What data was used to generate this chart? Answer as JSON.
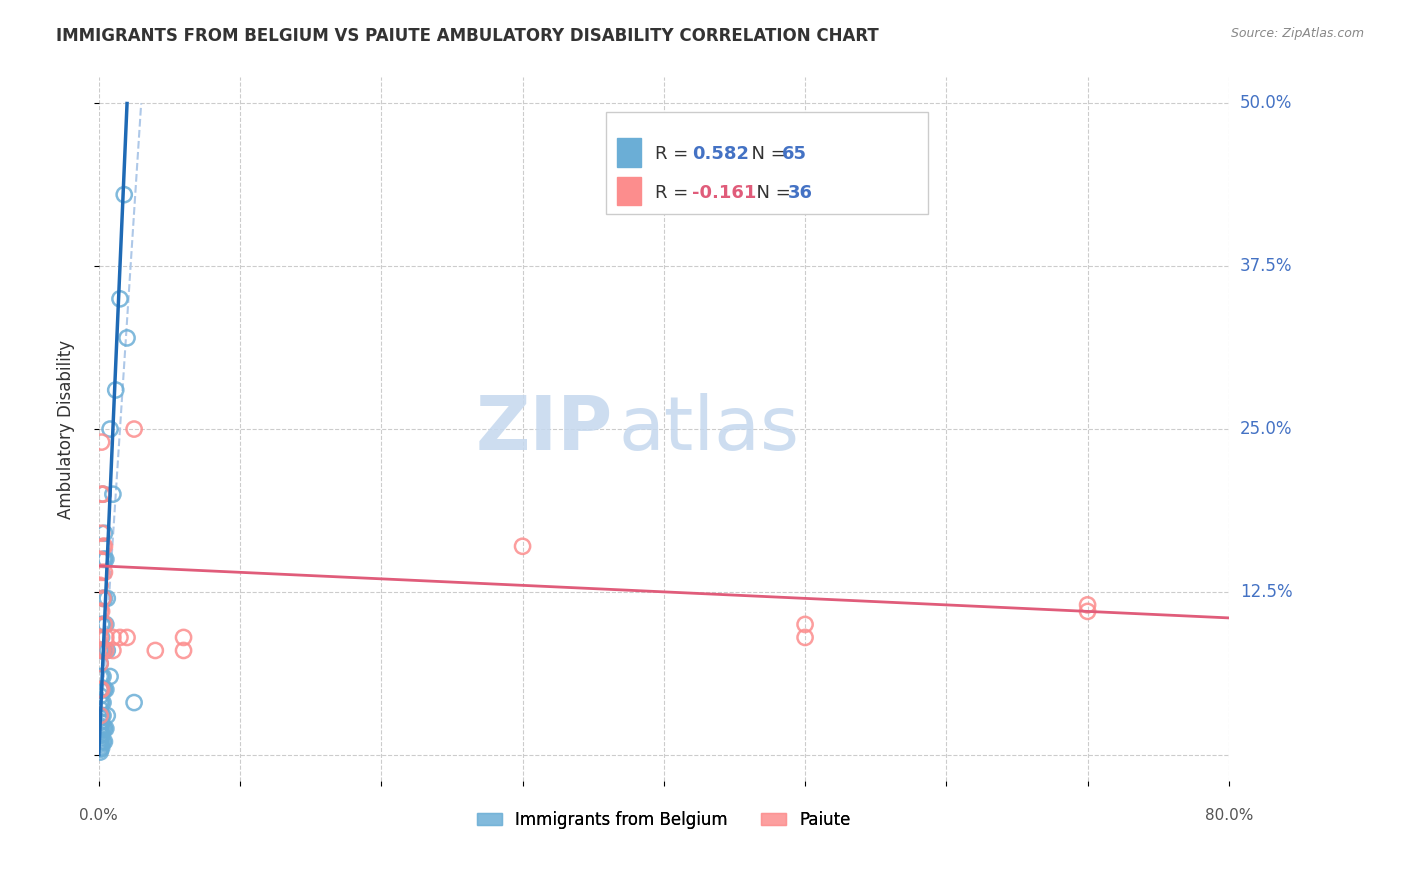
{
  "title": "IMMIGRANTS FROM BELGIUM VS PAIUTE AMBULATORY DISABILITY CORRELATION CHART",
  "source": "Source: ZipAtlas.com",
  "ylabel": "Ambulatory Disability",
  "xlim": [
    0.0,
    0.8
  ],
  "ylim": [
    -0.02,
    0.52
  ],
  "yticks": [
    0.0,
    0.125,
    0.25,
    0.375,
    0.5
  ],
  "ytick_labels": [
    "",
    "12.5%",
    "25.0%",
    "37.5%",
    "50.0%"
  ],
  "xticks": [
    0.0,
    0.1,
    0.2,
    0.3,
    0.4,
    0.5,
    0.6,
    0.7,
    0.8
  ],
  "blue_color": "#6baed6",
  "pink_color": "#fc8d8d",
  "trendline_blue": "#1f6ab5",
  "trendline_pink": "#e05c7a",
  "trendline_dashed_color": "#aec8e8",
  "watermark_zip": "ZIP",
  "watermark_atlas": "atlas",
  "blue_scatter": [
    [
      0.001,
      0.002
    ],
    [
      0.001,
      0.004
    ],
    [
      0.001,
      0.006
    ],
    [
      0.001,
      0.008
    ],
    [
      0.001,
      0.01
    ],
    [
      0.001,
      0.012
    ],
    [
      0.001,
      0.015
    ],
    [
      0.001,
      0.018
    ],
    [
      0.001,
      0.02
    ],
    [
      0.001,
      0.022
    ],
    [
      0.001,
      0.025
    ],
    [
      0.001,
      0.028
    ],
    [
      0.001,
      0.03
    ],
    [
      0.001,
      0.035
    ],
    [
      0.001,
      0.04
    ],
    [
      0.001,
      0.045
    ],
    [
      0.001,
      0.05
    ],
    [
      0.001,
      0.06
    ],
    [
      0.001,
      0.07
    ],
    [
      0.001,
      0.08
    ],
    [
      0.002,
      0.005
    ],
    [
      0.002,
      0.01
    ],
    [
      0.002,
      0.015
    ],
    [
      0.002,
      0.02
    ],
    [
      0.002,
      0.025
    ],
    [
      0.002,
      0.03
    ],
    [
      0.002,
      0.04
    ],
    [
      0.002,
      0.05
    ],
    [
      0.002,
      0.06
    ],
    [
      0.002,
      0.08
    ],
    [
      0.002,
      0.09
    ],
    [
      0.002,
      0.1
    ],
    [
      0.003,
      0.01
    ],
    [
      0.003,
      0.02
    ],
    [
      0.003,
      0.03
    ],
    [
      0.003,
      0.04
    ],
    [
      0.003,
      0.05
    ],
    [
      0.003,
      0.06
    ],
    [
      0.003,
      0.08
    ],
    [
      0.003,
      0.1
    ],
    [
      0.003,
      0.12
    ],
    [
      0.003,
      0.15
    ],
    [
      0.003,
      0.2
    ],
    [
      0.004,
      0.01
    ],
    [
      0.004,
      0.02
    ],
    [
      0.004,
      0.05
    ],
    [
      0.004,
      0.08
    ],
    [
      0.004,
      0.12
    ],
    [
      0.004,
      0.15
    ],
    [
      0.004,
      0.17
    ],
    [
      0.005,
      0.02
    ],
    [
      0.005,
      0.05
    ],
    [
      0.005,
      0.1
    ],
    [
      0.005,
      0.15
    ],
    [
      0.006,
      0.03
    ],
    [
      0.006,
      0.08
    ],
    [
      0.006,
      0.12
    ],
    [
      0.008,
      0.06
    ],
    [
      0.008,
      0.25
    ],
    [
      0.01,
      0.2
    ],
    [
      0.012,
      0.28
    ],
    [
      0.015,
      0.35
    ],
    [
      0.018,
      0.43
    ],
    [
      0.02,
      0.32
    ],
    [
      0.025,
      0.04
    ]
  ],
  "pink_scatter": [
    [
      0.001,
      0.03
    ],
    [
      0.001,
      0.05
    ],
    [
      0.001,
      0.07
    ],
    [
      0.001,
      0.09
    ],
    [
      0.001,
      0.11
    ],
    [
      0.001,
      0.13
    ],
    [
      0.001,
      0.15
    ],
    [
      0.002,
      0.05
    ],
    [
      0.002,
      0.08
    ],
    [
      0.002,
      0.11
    ],
    [
      0.002,
      0.14
    ],
    [
      0.002,
      0.17
    ],
    [
      0.002,
      0.2
    ],
    [
      0.002,
      0.24
    ],
    [
      0.003,
      0.08
    ],
    [
      0.003,
      0.12
    ],
    [
      0.003,
      0.16
    ],
    [
      0.003,
      0.2
    ],
    [
      0.004,
      0.1
    ],
    [
      0.004,
      0.14
    ],
    [
      0.004,
      0.16
    ],
    [
      0.005,
      0.09
    ],
    [
      0.005,
      0.08
    ],
    [
      0.01,
      0.09
    ],
    [
      0.01,
      0.08
    ],
    [
      0.015,
      0.09
    ],
    [
      0.02,
      0.09
    ],
    [
      0.025,
      0.25
    ],
    [
      0.04,
      0.08
    ],
    [
      0.06,
      0.09
    ],
    [
      0.06,
      0.08
    ],
    [
      0.3,
      0.16
    ],
    [
      0.5,
      0.1
    ],
    [
      0.5,
      0.09
    ],
    [
      0.7,
      0.115
    ],
    [
      0.7,
      0.11
    ]
  ],
  "blue_trendline": [
    [
      0.0,
      0.0
    ],
    [
      0.02,
      0.5
    ]
  ],
  "pink_trendline": [
    [
      0.0,
      0.145
    ],
    [
      0.8,
      0.105
    ]
  ],
  "dashed_trendline": [
    [
      0.0,
      0.0
    ],
    [
      0.03,
      0.5
    ]
  ]
}
